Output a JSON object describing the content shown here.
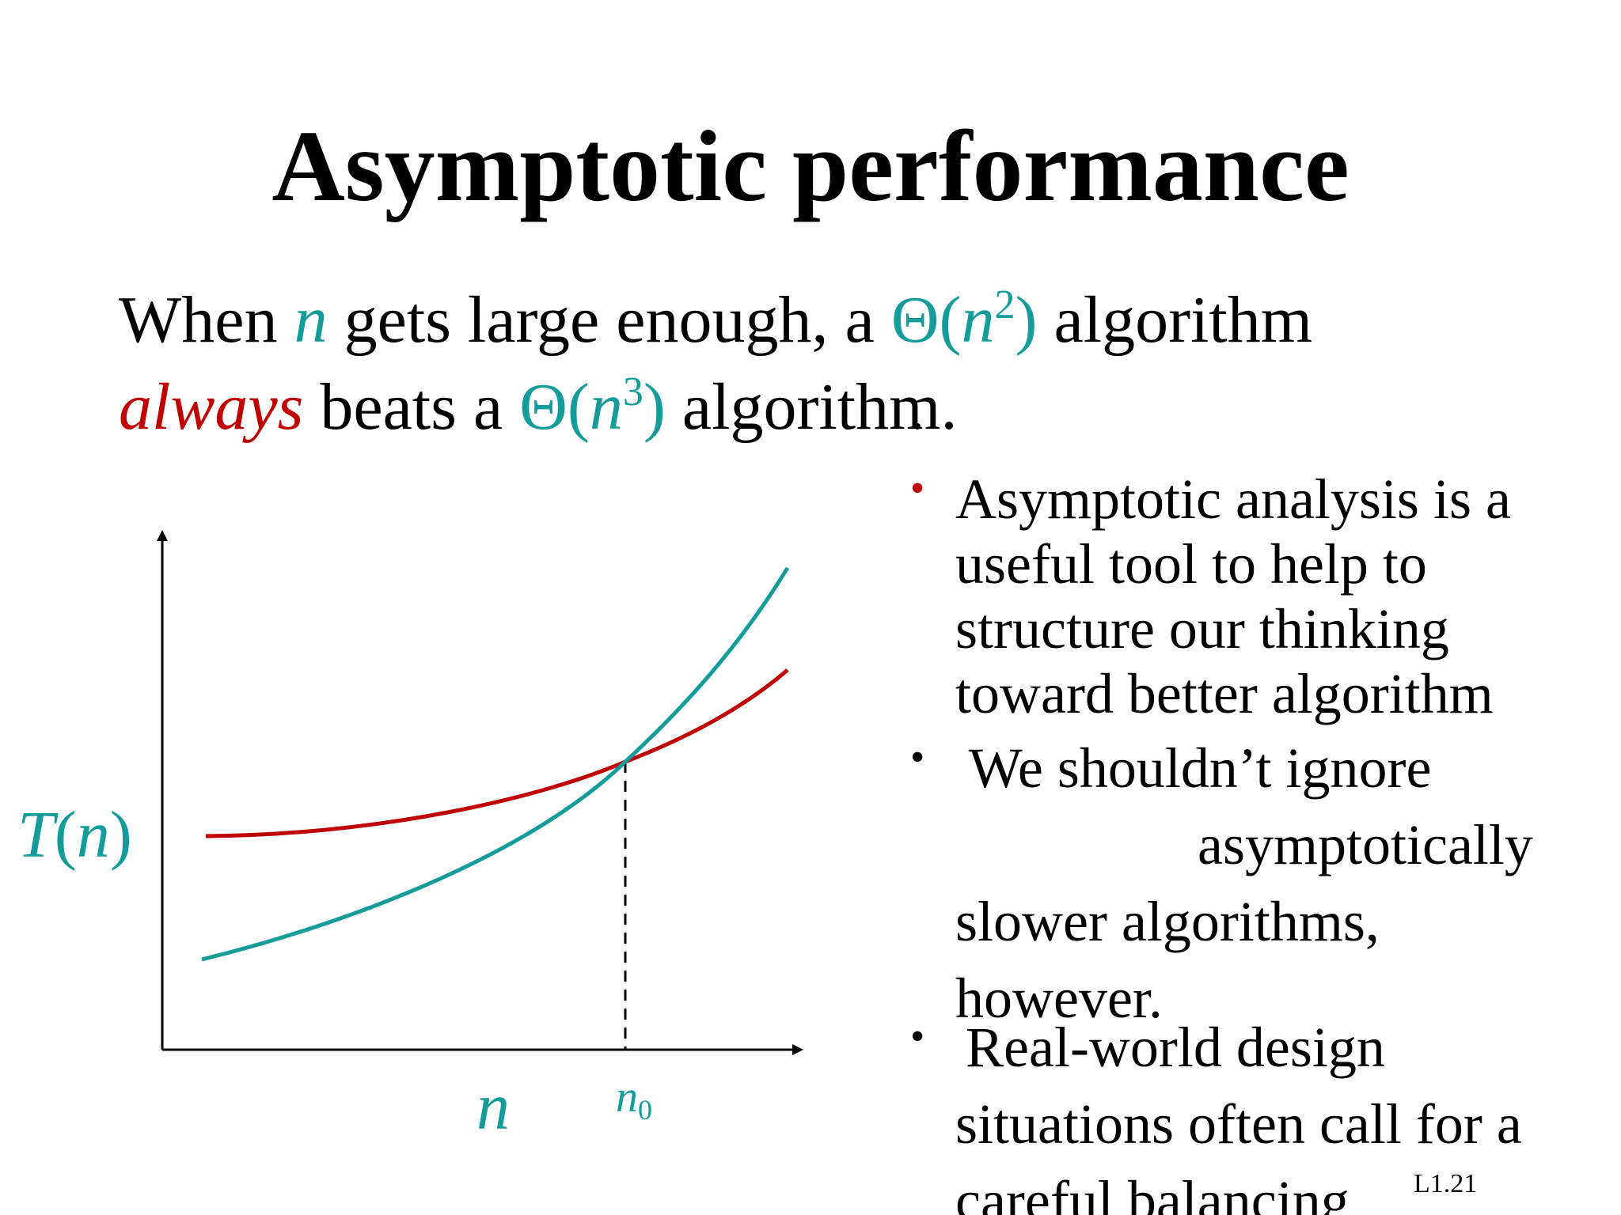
{
  "slide": {
    "title": "Asymptotic performance",
    "intro": {
      "line1": {
        "when": "When ",
        "n": "n",
        "mid": " gets large enough, a ",
        "theta2": "Θ(",
        "n2": "n",
        "exp2": "2",
        "close2": ")",
        "end": " algorithm"
      },
      "line2": {
        "always": "always",
        "mid": " beats a ",
        "theta3": "Θ(",
        "n3": "n",
        "exp3": "3",
        "close3": ")",
        "end": " algorithm."
      }
    },
    "graph": {
      "y_axis_label": {
        "T": "T",
        "open": "(",
        "n": "n",
        "close": ")"
      },
      "x_axis_label": "n",
      "crossover_label": {
        "n": "n",
        "sub": "0"
      }
    },
    "bullets": [
      {
        "marker": "•",
        "marker_color": "#c00000",
        "lines": [
          "Asymptotic analysis is a",
          "useful tool to help to",
          "structure our thinking",
          "toward better algorithm"
        ]
      },
      {
        "marker": "•",
        "marker_color": "#000000",
        "lines": [
          " We shouldn’t ignore",
          "                 asymptotically",
          "slower algorithms,",
          "however."
        ]
      },
      {
        "marker": "•",
        "marker_color": "#000000",
        "lines": [
          "Real-world design",
          "situations often call for a",
          "careful balancing"
        ]
      }
    ],
    "slide_number": "L1.21",
    "colors": {
      "teal": "#139c9a",
      "red": "#c00000"
    }
  }
}
